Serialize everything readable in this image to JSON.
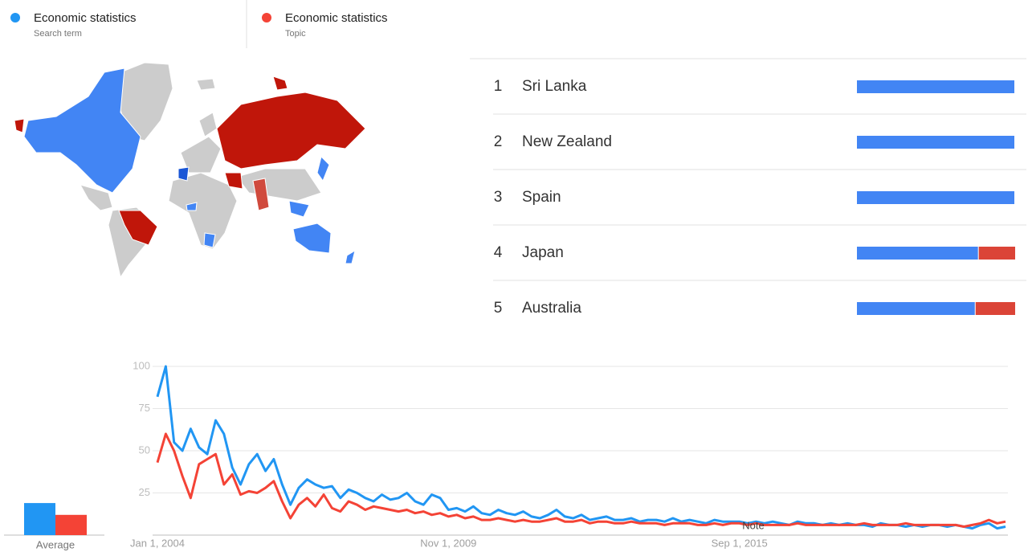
{
  "chart_data": [
    {
      "type": "stacked-bar",
      "ranks": [
        1,
        2,
        3,
        4,
        5
      ],
      "categories": [
        "Sri Lanka",
        "New Zealand",
        "Spain",
        "Japan",
        "Australia"
      ],
      "series": [
        {
          "color": "#4285f4",
          "values": [
            100,
            100,
            100,
            77,
            75
          ]
        },
        {
          "color": "#db4437",
          "values": [
            0,
            0,
            0,
            23,
            25
          ]
        }
      ]
    },
    {
      "type": "line",
      "annotation": "Note",
      "categories": [
        "Jan 1, 2004",
        null,
        null,
        null,
        null,
        null,
        null,
        null,
        null,
        null,
        null,
        null,
        null,
        null,
        null,
        null,
        null,
        null,
        null,
        null,
        null,
        null,
        null,
        null,
        null,
        null,
        null,
        null,
        null,
        null,
        null,
        null,
        null,
        null,
        null,
        "Nov 1, 2009",
        null,
        null,
        null,
        null,
        null,
        null,
        null,
        null,
        null,
        null,
        null,
        null,
        null,
        null,
        null,
        null,
        null,
        null,
        null,
        null,
        null,
        null,
        null,
        null,
        null,
        null,
        null,
        null,
        null,
        null,
        null,
        null,
        null,
        null,
        "Sep 1, 2015",
        null,
        null,
        null,
        null,
        null,
        null,
        null,
        null,
        null,
        null,
        null,
        null,
        null,
        null,
        null,
        null,
        null,
        null,
        null,
        null,
        null,
        null,
        null,
        null,
        null,
        null,
        null,
        null,
        null,
        null,
        null,
        null
      ],
      "series": [
        {
          "name": "Economic statistics",
          "kind": "Search term",
          "color": "#2196f3",
          "values": [
            82,
            100,
            55,
            50,
            63,
            52,
            48,
            68,
            60,
            40,
            30,
            42,
            48,
            38,
            45,
            30,
            18,
            28,
            33,
            30,
            28,
            29,
            22,
            27,
            25,
            22,
            20,
            24,
            21,
            22,
            25,
            20,
            18,
            24,
            22,
            15,
            16,
            14,
            17,
            13,
            12,
            15,
            13,
            12,
            14,
            11,
            10,
            12,
            15,
            11,
            10,
            12,
            9,
            10,
            11,
            9,
            9,
            10,
            8,
            9,
            9,
            8,
            10,
            8,
            9,
            8,
            7,
            9,
            8,
            8,
            8,
            7,
            8,
            7,
            8,
            7,
            6,
            8,
            7,
            7,
            6,
            7,
            6,
            7,
            6,
            6,
            5,
            7,
            6,
            6,
            5,
            6,
            5,
            6,
            6,
            5,
            6,
            5,
            4,
            6,
            7,
            4,
            5
          ]
        },
        {
          "name": "Economic statistics",
          "kind": "Topic",
          "color": "#f44336",
          "values": [
            43,
            60,
            50,
            35,
            22,
            42,
            45,
            48,
            30,
            36,
            24,
            26,
            25,
            28,
            32,
            20,
            10,
            18,
            22,
            17,
            24,
            16,
            14,
            20,
            18,
            15,
            17,
            16,
            15,
            14,
            15,
            13,
            14,
            12,
            13,
            11,
            12,
            10,
            11,
            9,
            9,
            10,
            9,
            8,
            9,
            8,
            8,
            9,
            10,
            8,
            8,
            9,
            7,
            8,
            8,
            7,
            7,
            8,
            7,
            7,
            7,
            6,
            7,
            7,
            7,
            6,
            6,
            7,
            6,
            7,
            7,
            6,
            7,
            6,
            6,
            6,
            6,
            7,
            6,
            6,
            6,
            6,
            6,
            6,
            6,
            7,
            6,
            6,
            6,
            6,
            7,
            6,
            6,
            6,
            6,
            6,
            6,
            5,
            6,
            7,
            9,
            7,
            8
          ]
        }
      ],
      "ylim": [
        0,
        100
      ],
      "yticks": [
        25,
        50,
        75,
        100
      ],
      "grid": true
    },
    {
      "type": "bar",
      "categories": [
        "Average"
      ],
      "ylim": [
        0,
        100
      ],
      "series": [
        {
          "color": "#2196f3",
          "values": [
            19
          ]
        },
        {
          "color": "#f44336",
          "values": [
            12
          ]
        }
      ]
    }
  ]
}
